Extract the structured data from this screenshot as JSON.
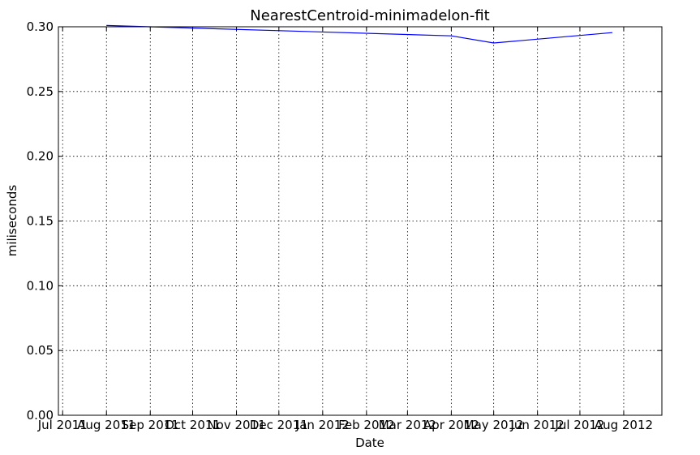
{
  "chart_data": {
    "type": "line",
    "title": "NearestCentroid-minimadelon-fit",
    "xlabel": "Date",
    "ylabel": "miliseconds",
    "xlim": [
      "2011-06-28",
      "2012-08-28"
    ],
    "ylim": [
      0,
      0.3
    ],
    "grid": true,
    "x_ticks": [
      "2011-07-01",
      "2011-08-01",
      "2011-09-01",
      "2011-10-01",
      "2011-11-01",
      "2011-12-01",
      "2012-01-01",
      "2012-02-01",
      "2012-03-01",
      "2012-04-01",
      "2012-05-01",
      "2012-06-01",
      "2012-07-01",
      "2012-08-01"
    ],
    "x_tick_labels": [
      "Jul 2011",
      "Aug 2011",
      "Sep 2011",
      "Oct 2011",
      "Nov 2011",
      "Dec 2011",
      "Jan 2012",
      "Feb 2012",
      "Mar 2012",
      "Apr 2012",
      "May 2012",
      "Jun 2012",
      "Jul 2012",
      "Aug 2012"
    ],
    "y_ticks": [
      0.0,
      0.05,
      0.1,
      0.15,
      0.2,
      0.25,
      0.3
    ],
    "y_tick_labels": [
      "0.00",
      "0.05",
      "0.10",
      "0.15",
      "0.20",
      "0.25",
      "0.30"
    ],
    "series": [
      {
        "color": "#0000ff",
        "x": [
          "2011-08-01",
          "2012-04-01",
          "2012-05-01",
          "2012-07-24"
        ],
        "y": [
          0.301,
          0.293,
          0.2875,
          0.2955
        ]
      }
    ]
  }
}
